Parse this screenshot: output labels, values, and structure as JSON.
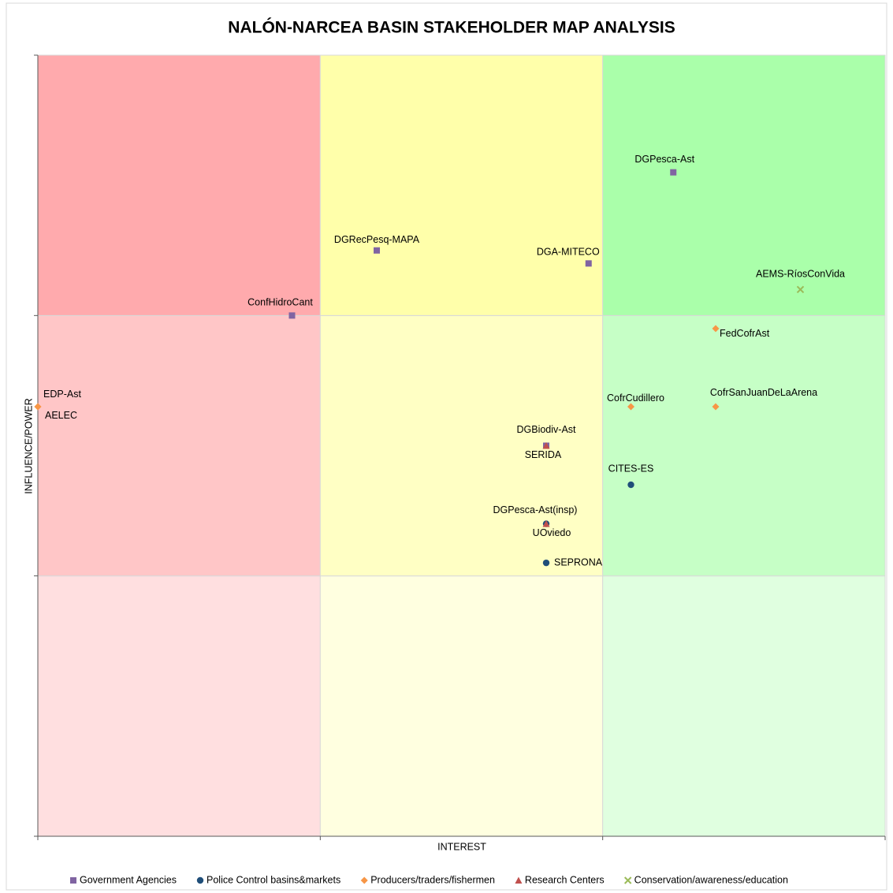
{
  "chart_data": {
    "type": "scatter",
    "title": "NALÓN-NARCEA BASIN STAKEHOLDER MAP ANALYSIS",
    "x_label": "INTEREST",
    "y_label": "INFLUENCE/POWER",
    "xlim": [
      0,
      30
    ],
    "ylim": [
      0,
      30
    ],
    "xticks": [
      0,
      10,
      20,
      30
    ],
    "yticks": [
      0,
      10,
      20,
      30
    ],
    "series": [
      {
        "name": "Government Agencies",
        "color": "#8064a2",
        "marker": "square",
        "labels": [
          "DGPesca-Ast",
          "DGRecPesq-MAPA",
          "DGA-MITECO",
          "ConfHidroCant",
          "DGBiodiv-Ast"
        ],
        "x": [
          22.5,
          12,
          19.5,
          9,
          18
        ],
        "values": [
          25.5,
          22.5,
          22,
          20,
          15
        ]
      },
      {
        "name": "Police Control basins&markets",
        "color": "#1f4e79",
        "marker": "circle",
        "labels": [
          "DGPesca-Ast(insp)",
          "CITES-ES",
          "SEPRONA"
        ],
        "x": [
          18,
          21,
          18
        ],
        "values": [
          12,
          13.5,
          10.5
        ]
      },
      {
        "name": "Producers/traders/fishermen",
        "color": "#f79646",
        "marker": "diamond",
        "labels": [
          "EDP-Ast",
          "AELEC",
          "FedCofrAst",
          "CofrCudillero",
          "CofrSanJuanDeLaArena"
        ],
        "x": [
          0,
          0,
          24,
          21,
          24
        ],
        "values": [
          16.5,
          16.5,
          19.5,
          16.5,
          16.5
        ]
      },
      {
        "name": "Research Centers",
        "color": "#c0504d",
        "marker": "triangle",
        "labels": [
          "SERIDA",
          "UOviedo"
        ],
        "x": [
          18,
          18
        ],
        "values": [
          15,
          12
        ]
      },
      {
        "name": "Conservation/awareness/education",
        "color": "#9bbb59",
        "marker": "cross",
        "labels": [
          "AEMS-RíosConVida"
        ],
        "x": [
          27
        ],
        "values": [
          21
        ]
      }
    ]
  }
}
